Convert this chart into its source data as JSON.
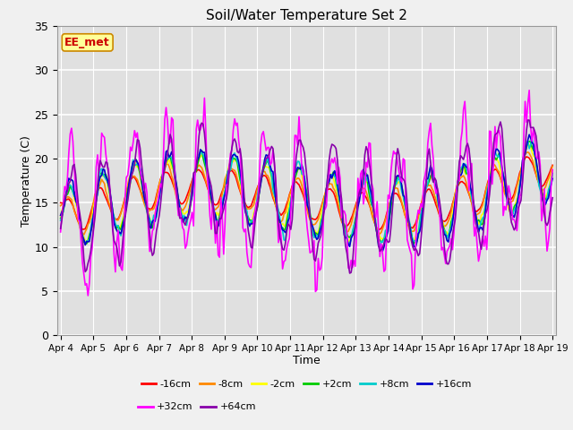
{
  "title": "Soil/Water Temperature Set 2",
  "xlabel": "Time",
  "ylabel": "Temperature (C)",
  "ylim": [
    0,
    35
  ],
  "yticks": [
    0,
    5,
    10,
    15,
    20,
    25,
    30,
    35
  ],
  "x_labels": [
    "Apr 4",
    "Apr 5",
    "Apr 6",
    "Apr 7",
    "Apr 8",
    "Apr 9",
    "Apr 10",
    "Apr 11",
    "Apr 12",
    "Apr 13",
    "Apr 14",
    "Apr 15",
    "Apr 16",
    "Apr 17",
    "Apr 18",
    "Apr 19"
  ],
  "annotation": "EE_met",
  "annotation_color": "#cc0000",
  "annotation_bg": "#ffff99",
  "legend_entries": [
    "-16cm",
    "-8cm",
    "-2cm",
    "+2cm",
    "+8cm",
    "+16cm",
    "+32cm",
    "+64cm"
  ],
  "legend_colors": [
    "#ff0000",
    "#ff8800",
    "#ffff00",
    "#00cc00",
    "#00cccc",
    "#0000cc",
    "#ff00ff",
    "#8800aa"
  ],
  "fig_facecolor": "#f0f0f0",
  "plot_bg": "#e0e0e0",
  "n_points": 360
}
